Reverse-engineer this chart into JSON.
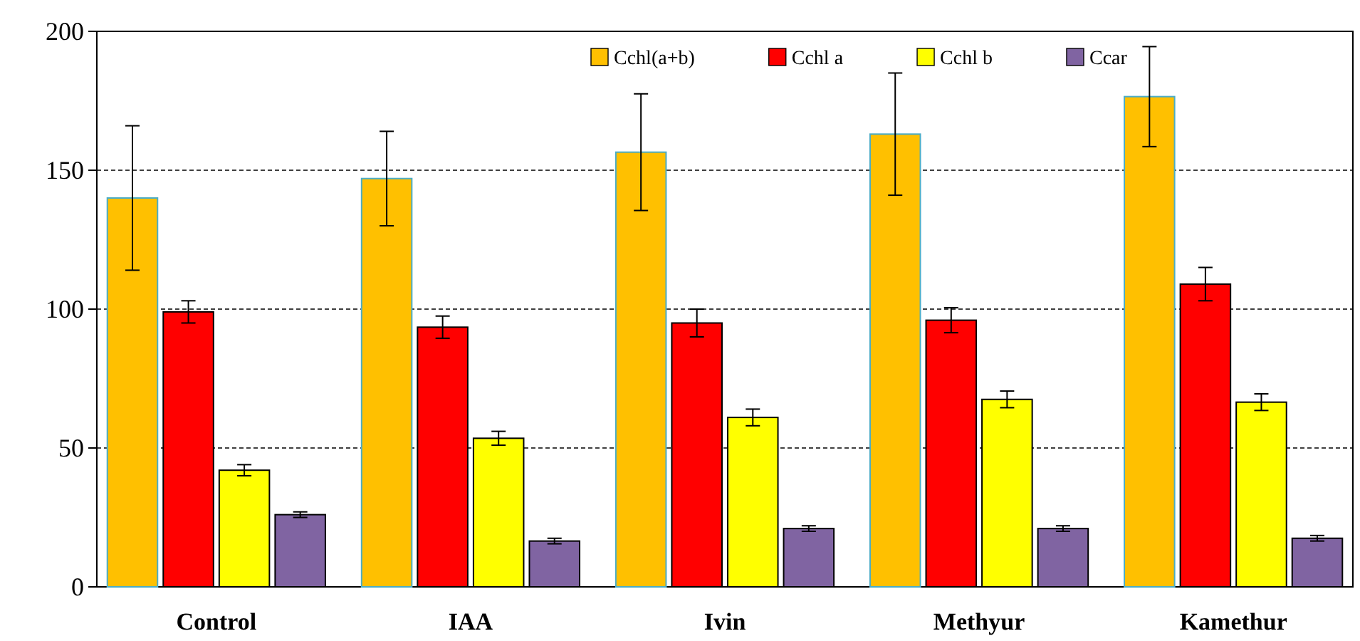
{
  "chart_data": {
    "type": "bar",
    "categories": [
      "Control",
      "IAA",
      "Ivin",
      "Methyur",
      "Kamethur"
    ],
    "series": [
      {
        "name": "Cchl(a+b)",
        "color": "#ffc000",
        "values": [
          140,
          147,
          156.5,
          163,
          176.5
        ],
        "errors": [
          26,
          17,
          21,
          22,
          18
        ]
      },
      {
        "name": "Cchl a",
        "color": "#ff0000",
        "values": [
          99,
          93.5,
          95,
          96,
          109
        ],
        "errors": [
          4,
          4,
          5,
          4.5,
          6
        ]
      },
      {
        "name": "Cchl b",
        "color": "#ffff00",
        "values": [
          42,
          53.5,
          61,
          67.5,
          66.5
        ],
        "errors": [
          2,
          2.5,
          3,
          3,
          3
        ]
      },
      {
        "name": "Ccar",
        "color": "#8064a2",
        "values": [
          26,
          16.5,
          21,
          21,
          17.5
        ],
        "errors": [
          1,
          1,
          1,
          1,
          1
        ]
      }
    ],
    "ylim": [
      0,
      200
    ],
    "yticks": [
      0,
      50,
      100,
      150,
      200
    ],
    "grid": "y",
    "legend": "top right"
  }
}
